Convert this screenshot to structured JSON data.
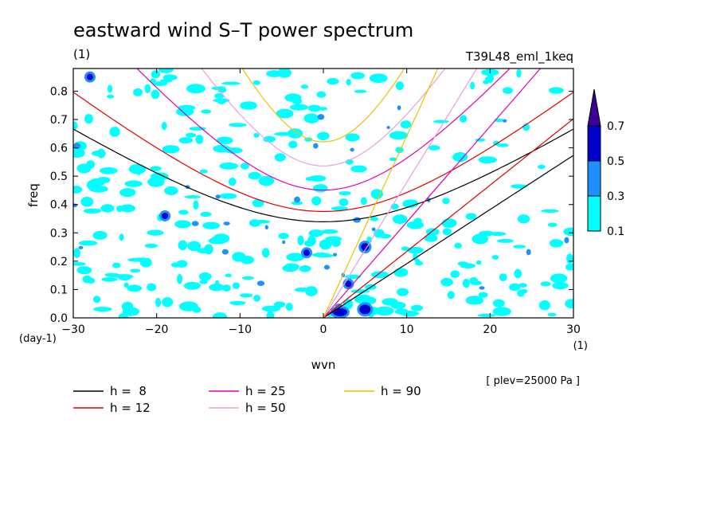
{
  "chart_data": {
    "type": "heatmap",
    "title": "eastward wind S–T power spectrum",
    "title_units": "(1)",
    "experiment": "T39L48_eml_1keq",
    "xlabel": "wvn",
    "x_units": "(1)",
    "ylabel": "freq",
    "y_units": "(day-1)",
    "xlim": [
      -30,
      30
    ],
    "ylim": [
      0,
      0.88
    ],
    "x_ticks": [
      "−30",
      "−20",
      "−10",
      "0",
      "10",
      "20",
      "30"
    ],
    "y_ticks": [
      "0.0",
      "0.1",
      "0.2",
      "0.3",
      "0.4",
      "0.5",
      "0.6",
      "0.7",
      "0.8"
    ],
    "footnote": "[ plev=25000 Pa ]",
    "colorbar": {
      "levels": [
        "0.1",
        "0.3",
        "0.5",
        "0.7"
      ],
      "colors": [
        "#00ffff",
        "#1e90ff",
        "#0000cd",
        "#3b0096"
      ]
    },
    "dispersion_curves": [
      {
        "name": "h =  8",
        "h": 8,
        "color": "#000000"
      },
      {
        "name": "h = 12",
        "h": 12,
        "color": "#e00000"
      },
      {
        "name": "h = 25",
        "h": 25,
        "color": "#e000b0"
      },
      {
        "name": "h = 50",
        "h": 50,
        "color": "#e8a0e0"
      },
      {
        "name": "h = 90",
        "h": 90,
        "color": "#f0c000"
      }
    ],
    "grid": false
  }
}
